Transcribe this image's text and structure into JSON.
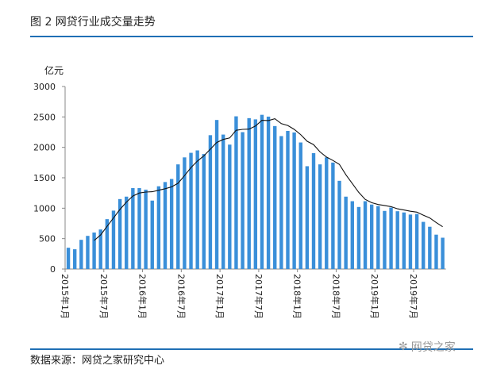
{
  "header": {
    "title": "图 2  网贷行业成交量走势"
  },
  "footer": {
    "source": "数据来源：网贷之家研究中心",
    "logo_text": "网贷之家",
    "logo_icon": "wechat-icon"
  },
  "chart_data": {
    "type": "bar",
    "title": "",
    "ylabel": "亿元",
    "xlabel": "",
    "ylim": [
      0,
      3000
    ],
    "yticks": [
      "0",
      "500",
      "1000",
      "1500",
      "2000",
      "2500",
      "3000"
    ],
    "xtick_labels": [
      "2015年1月",
      "2015年7月",
      "2016年1月",
      "2016年7月",
      "2017年1月",
      "2017年7月",
      "2018年1月",
      "2018年7月",
      "2019年1月",
      "2019年7月"
    ],
    "start_month": "2015年1月",
    "colors": {
      "bar": "#3a8fd9",
      "line": "#111111",
      "rule": "#1f6fb5"
    },
    "bar_values": [
      350,
      325,
      480,
      545,
      600,
      650,
      820,
      960,
      1150,
      1190,
      1330,
      1330,
      1305,
      1125,
      1360,
      1430,
      1480,
      1720,
      1835,
      1910,
      1950,
      1890,
      2200,
      2450,
      2210,
      2045,
      2510,
      2250,
      2480,
      2460,
      2535,
      2505,
      2350,
      2185,
      2270,
      2245,
      2080,
      1690,
      1905,
      1720,
      1835,
      1750,
      1450,
      1190,
      1115,
      1020,
      1115,
      1060,
      1035,
      955,
      1010,
      950,
      930,
      895,
      905,
      775,
      695,
      565,
      515
    ],
    "trend_line": {
      "start_index": 4,
      "values": [
        470,
        560,
        700,
        840,
        980,
        1100,
        1200,
        1250,
        1265,
        1270,
        1295,
        1320,
        1350,
        1410,
        1535,
        1665,
        1775,
        1860,
        1970,
        2080,
        2130,
        2155,
        2280,
        2295,
        2300,
        2350,
        2445,
        2440,
        2470,
        2390,
        2360,
        2295,
        2210,
        2100,
        2045,
        1925,
        1840,
        1785,
        1720,
        1550,
        1405,
        1260,
        1145,
        1090,
        1060,
        1045,
        1025,
        990,
        970,
        950,
        935,
        885,
        840,
        765,
        695
      ]
    },
    "grid": false,
    "legend": "none"
  }
}
